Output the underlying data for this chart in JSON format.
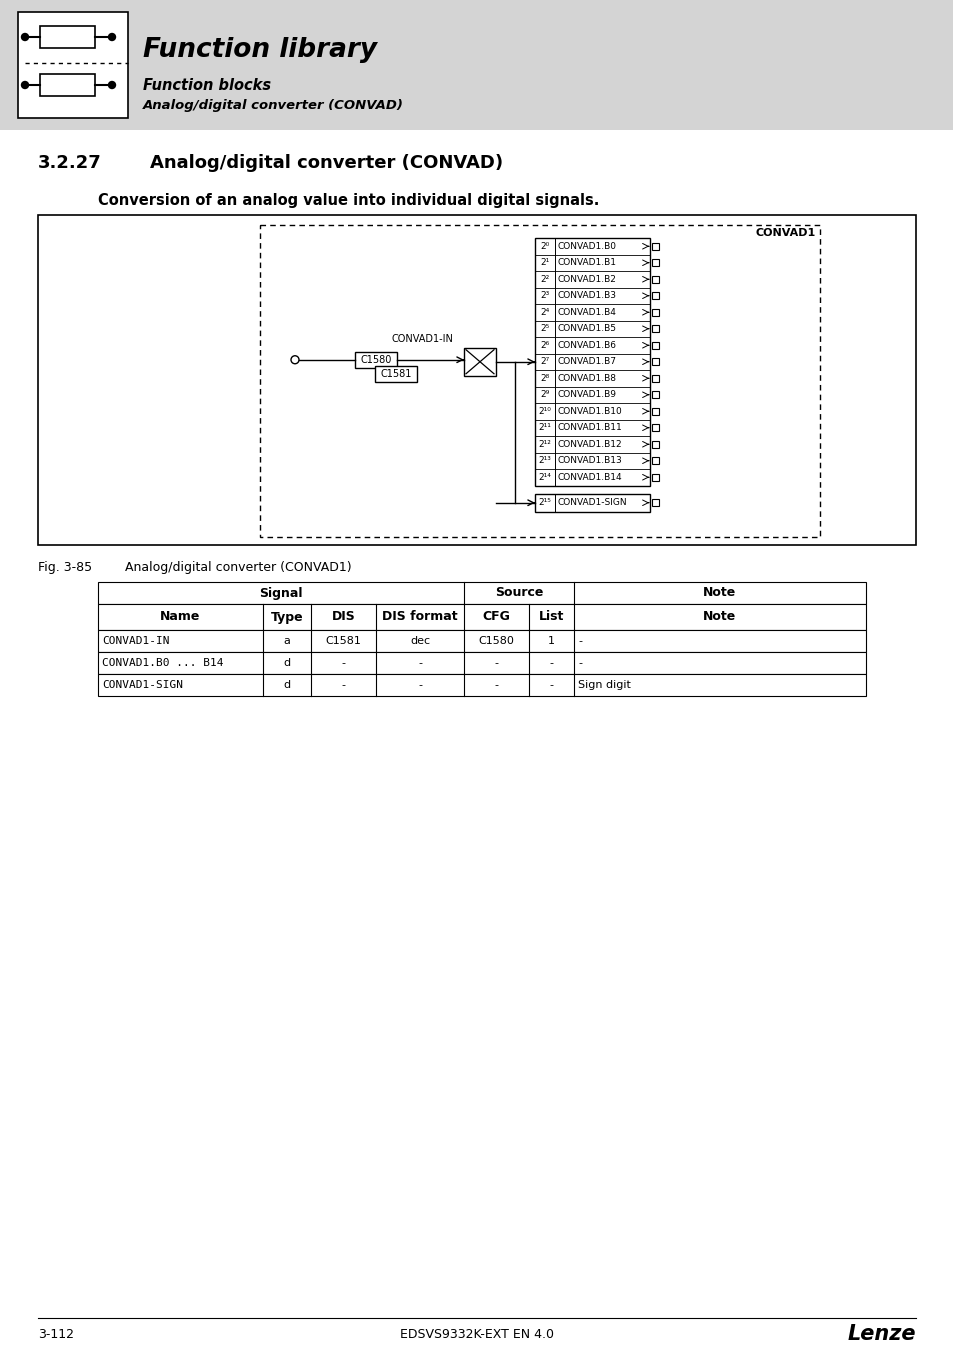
{
  "page_bg": "#ffffff",
  "header_bg": "#d4d4d4",
  "header_title": "Function library",
  "header_sub1": "Function blocks",
  "header_sub2": "Analog/digital converter (CONVAD)",
  "section_number": "3.2.27",
  "section_title": "Analog/digital converter (CONVAD)",
  "description": "Conversion of an analog value into individual digital signals.",
  "fig_label": "Fig. 3-85",
  "fig_caption": "Analog/digital converter (CONVAD1)",
  "output_labels": [
    "CONVAD1.B0",
    "CONVAD1.B1",
    "CONVAD1.B2",
    "CONVAD1.B3",
    "CONVAD1.B4",
    "CONVAD1.B5",
    "CONVAD1.B6",
    "CONVAD1.B7",
    "CONVAD1.B8",
    "CONVAD1.B9",
    "CONVAD1.B10",
    "CONVAD1.B11",
    "CONVAD1.B12",
    "CONVAD1.B13",
    "CONVAD1.B14",
    "CONVAD1-SIGN"
  ],
  "power_labels": [
    "2⁰",
    "2¹",
    "2²",
    "2³",
    "2⁴",
    "2⁵",
    "2⁶",
    "2⁷",
    "2⁸",
    "2⁹",
    "2¹⁰",
    "2¹¹",
    "2¹²",
    "2¹³",
    "2¹⁴",
    "2¹⁵"
  ],
  "table_col_headers": [
    "Name",
    "Type",
    "DIS",
    "DIS format",
    "CFG",
    "List",
    "Note"
  ],
  "table_rows": [
    [
      "CONVAD1-IN",
      "a",
      "C1581",
      "dec",
      "C1580",
      "1",
      "-"
    ],
    [
      "CONVAD1.B0 ... B14",
      "d",
      "-",
      "-",
      "-",
      "-",
      "-"
    ],
    [
      "CONVAD1-SIGN",
      "d",
      "-",
      "-",
      "-",
      "-",
      "Sign digit"
    ]
  ],
  "footer_left": "3-112",
  "footer_center": "EDSVS9332K-EXT EN 4.0",
  "footer_right": "Lenze"
}
